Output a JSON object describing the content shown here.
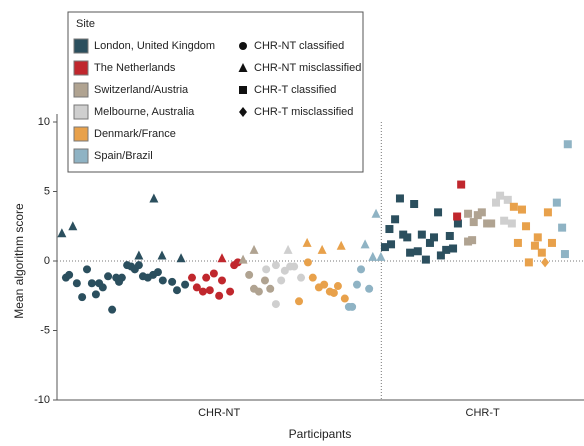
{
  "chart_data": {
    "type": "scatter",
    "y_label": "Mean algorithm score",
    "x_label": "Participants",
    "legend_title": "Site",
    "groups": [
      "CHR-NT",
      "CHR-T"
    ],
    "group_divider_x": 80,
    "xlim": [
      0,
      130
    ],
    "ylim": [
      -10,
      10
    ],
    "yticks": [
      -10,
      -5,
      0,
      5,
      10
    ],
    "zero_line": true,
    "sites": [
      {
        "name": "London, United Kingdom",
        "color": "#2b4f5e"
      },
      {
        "name": "The Netherlands",
        "color": "#c0272d"
      },
      {
        "name": "Switzerland/Austria",
        "color": "#b0a391"
      },
      {
        "name": "Melbourne, Australia",
        "color": "#cfcfcf"
      },
      {
        "name": "Denmark/France",
        "color": "#e8a14b"
      },
      {
        "name": "Spain/Brazil",
        "color": "#8fb3c4"
      }
    ],
    "marker_types": [
      {
        "name": "CHR-NT classified",
        "shape": "circle"
      },
      {
        "name": "CHR-NT misclassified",
        "shape": "triangle"
      },
      {
        "name": "CHR-T classified",
        "shape": "square"
      },
      {
        "name": "CHR-T misclassified",
        "shape": "diamond"
      }
    ],
    "series": [
      {
        "site": 0,
        "marker": 0,
        "x": [
          2.2,
          3.0,
          4.9,
          6.2,
          7.4,
          8.6,
          9.6,
          10.4,
          11.3,
          12.6,
          13.6,
          14.6,
          15.3,
          16.0,
          17.3,
          18.3,
          19.2,
          20.2,
          21.2,
          22.4,
          23.7,
          24.9,
          26.1,
          28.4,
          29.6,
          31.6
        ],
        "y": [
          -1.2,
          -1.0,
          -1.6,
          -2.6,
          -0.6,
          -1.6,
          -2.4,
          -1.6,
          -1.9,
          -1.1,
          -3.5,
          -1.2,
          -1.5,
          -1.2,
          -0.3,
          -0.4,
          -0.6,
          -0.3,
          -1.1,
          -1.2,
          -1.0,
          -0.8,
          -1.4,
          -1.5,
          -2.1,
          -1.7
        ]
      },
      {
        "site": 0,
        "marker": 1,
        "x": [
          1.2,
          3.9,
          20.2,
          23.9,
          25.9,
          30.6
        ],
        "y": [
          2.0,
          2.5,
          0.4,
          4.5,
          0.4,
          0.2
        ]
      },
      {
        "site": 1,
        "marker": 0,
        "x": [
          33.3,
          34.5,
          36.0,
          36.8,
          37.7,
          38.7,
          40.0,
          40.7,
          42.7,
          43.7,
          44.6
        ],
        "y": [
          -1.2,
          -1.9,
          -2.2,
          -1.2,
          -2.1,
          -0.9,
          -2.5,
          -1.4,
          -2.2,
          -0.3,
          -0.1
        ]
      },
      {
        "site": 1,
        "marker": 1,
        "x": [
          40.7
        ],
        "y": [
          0.2
        ]
      },
      {
        "site": 2,
        "marker": 0,
        "x": [
          47.4,
          48.6,
          49.8,
          51.3,
          52.6
        ],
        "y": [
          -1.0,
          -2.0,
          -2.2,
          -1.4,
          -2.0
        ]
      },
      {
        "site": 2,
        "marker": 1,
        "x": [
          45.9,
          48.6
        ],
        "y": [
          0.1,
          0.8
        ]
      },
      {
        "site": 3,
        "marker": 0,
        "x": [
          51.6,
          54.0,
          54.0,
          55.3,
          56.2,
          57.5,
          58.5,
          60.2
        ],
        "y": [
          -0.6,
          -0.3,
          -3.1,
          -1.4,
          -0.7,
          -0.4,
          -0.4,
          -1.2
        ]
      },
      {
        "site": 3,
        "marker": 1,
        "x": [
          57.0
        ],
        "y": [
          0.8
        ]
      },
      {
        "site": 4,
        "marker": 0,
        "x": [
          59.7,
          61.9,
          63.1,
          64.6,
          65.9,
          67.3,
          68.3,
          69.3,
          71.0
        ],
        "y": [
          -2.9,
          -0.1,
          -1.2,
          -1.9,
          -1.7,
          -2.2,
          -2.3,
          -1.8,
          -2.7
        ]
      },
      {
        "site": 4,
        "marker": 1,
        "x": [
          61.7,
          65.4,
          70.1
        ],
        "y": [
          1.3,
          0.8,
          1.1
        ]
      },
      {
        "site": 5,
        "marker": 0,
        "x": [
          72.0,
          72.8,
          74.0,
          75.0,
          77.0
        ],
        "y": [
          -3.3,
          -3.3,
          -1.7,
          -0.6,
          -2.0
        ]
      },
      {
        "site": 5,
        "marker": 1,
        "x": [
          76.0,
          77.9,
          78.7,
          79.9
        ],
        "y": [
          1.2,
          0.3,
          3.4,
          0.3
        ]
      },
      {
        "site": 0,
        "marker": 2,
        "x": [
          80.9,
          82.4,
          82.0,
          83.4,
          84.6,
          85.4,
          86.4,
          87.1,
          88.1,
          89.0,
          90.0,
          91.0,
          92.0,
          93.0,
          94.0,
          94.7,
          96.0,
          96.9,
          97.7,
          98.9
        ],
        "y": [
          1.0,
          1.2,
          2.3,
          3.0,
          4.5,
          1.9,
          1.7,
          0.6,
          4.1,
          0.7,
          1.9,
          0.1,
          1.3,
          1.7,
          3.5,
          0.4,
          0.8,
          1.8,
          0.9,
          2.7
        ]
      },
      {
        "site": 1,
        "marker": 2,
        "x": [
          98.7,
          99.7
        ],
        "y": [
          3.2,
          5.5
        ]
      },
      {
        "site": 2,
        "marker": 2,
        "x": [
          101.4,
          101.4,
          102.4,
          102.8,
          103.8,
          104.8,
          106.1,
          107.1
        ],
        "y": [
          3.4,
          1.4,
          1.5,
          2.8,
          3.3,
          3.5,
          2.7,
          2.7
        ]
      },
      {
        "site": 3,
        "marker": 2,
        "x": [
          108.3,
          109.3,
          110.3,
          111.2,
          112.2
        ],
        "y": [
          4.2,
          4.7,
          2.9,
          4.4,
          2.7
        ]
      },
      {
        "site": 4,
        "marker": 2,
        "x": [
          112.7,
          113.7,
          114.7,
          115.7,
          116.4,
          117.9,
          118.6,
          119.6,
          121.1,
          122.1
        ],
        "y": [
          3.9,
          1.3,
          3.7,
          2.5,
          -0.1,
          1.1,
          1.7,
          0.6,
          3.5,
          1.3
        ]
      },
      {
        "site": 4,
        "marker": 3,
        "x": [
          120.4
        ],
        "y": [
          -0.1
        ]
      },
      {
        "site": 5,
        "marker": 2,
        "x": [
          123.3,
          124.6,
          125.3,
          126.0
        ],
        "y": [
          4.2,
          2.4,
          0.5,
          8.4
        ]
      }
    ]
  }
}
